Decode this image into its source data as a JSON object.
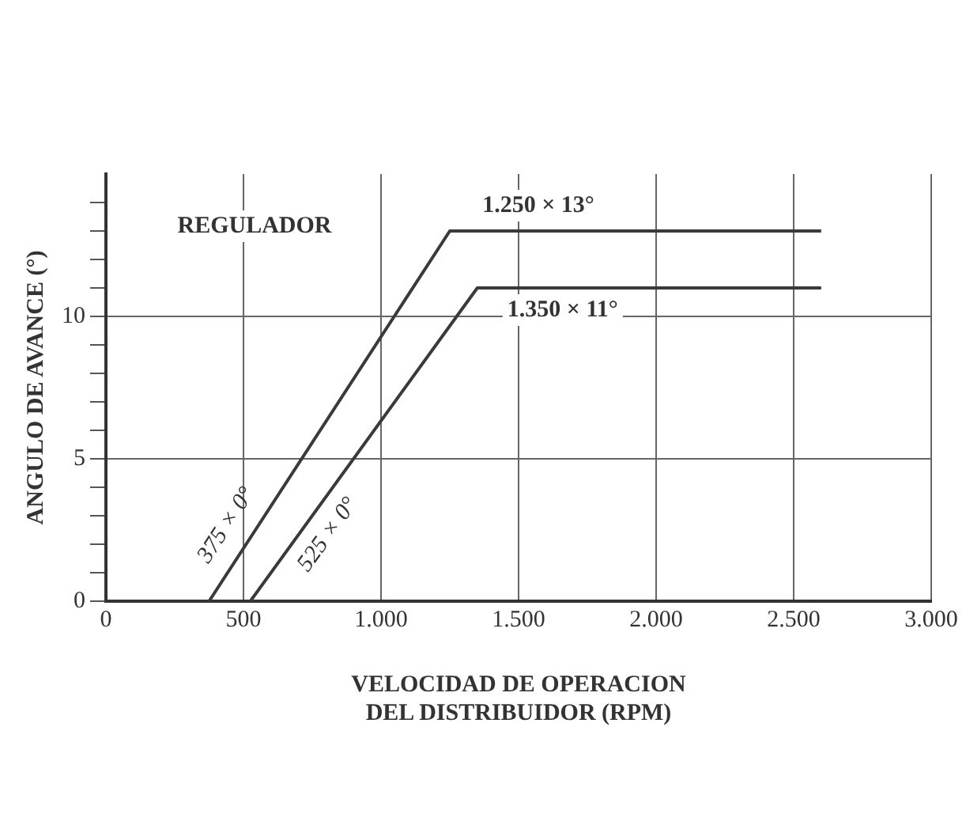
{
  "chart_data": {
    "type": "line",
    "xlabel": "VELOCIDAD DE OPERACION\nDEL DISTRIBUIDOR (RPM)",
    "ylabel": "ANGULO DE AVANCE (°)",
    "series": [
      {
        "color": "#3a3a3a",
        "x": [
          375,
          1250,
          2600
        ],
        "values": [
          0,
          13,
          13
        ]
      },
      {
        "color": "#3a3a3a",
        "x": [
          525,
          1350,
          2600
        ],
        "values": [
          0,
          11,
          11
        ]
      }
    ],
    "xlim": [
      0,
      3000
    ],
    "xticks": [
      0,
      500,
      {
        "value": 1000,
        "label": "1.000"
      },
      {
        "value": 1500,
        "label": "1.500"
      },
      {
        "value": 2000,
        "label": "2.000"
      },
      {
        "value": 2500,
        "label": "2.500"
      },
      {
        "value": 3000,
        "label": "3.000"
      }
    ],
    "ylim": [
      0,
      15
    ],
    "yticks": [
      0,
      {
        "value": 1,
        "label": null
      },
      {
        "value": 2,
        "label": null
      },
      {
        "value": 3,
        "label": null
      },
      {
        "value": 4,
        "label": null
      },
      5,
      {
        "value": 6,
        "label": null
      },
      {
        "value": 7,
        "label": null
      },
      {
        "value": 8,
        "label": null
      },
      {
        "value": 9,
        "label": null
      },
      10,
      {
        "value": 11,
        "label": null
      },
      {
        "value": 12,
        "label": null
      },
      {
        "value": 13,
        "label": null
      },
      {
        "value": 14,
        "label": null
      }
    ],
    "annotations": [
      "REGULADOR",
      {
        "text": "1.250 × 13°",
        "x": 1250,
        "y": 13
      },
      {
        "text": "1.350 × 11°",
        "x": 1350,
        "y": 11
      },
      {
        "text": "375 × 0°",
        "x": 375,
        "y": 0
      },
      {
        "text": "525 × 0°",
        "x": 525,
        "y": 0
      }
    ],
    "grid": true,
    "legend": false,
    "marker": "none",
    "line_style": "solid"
  }
}
